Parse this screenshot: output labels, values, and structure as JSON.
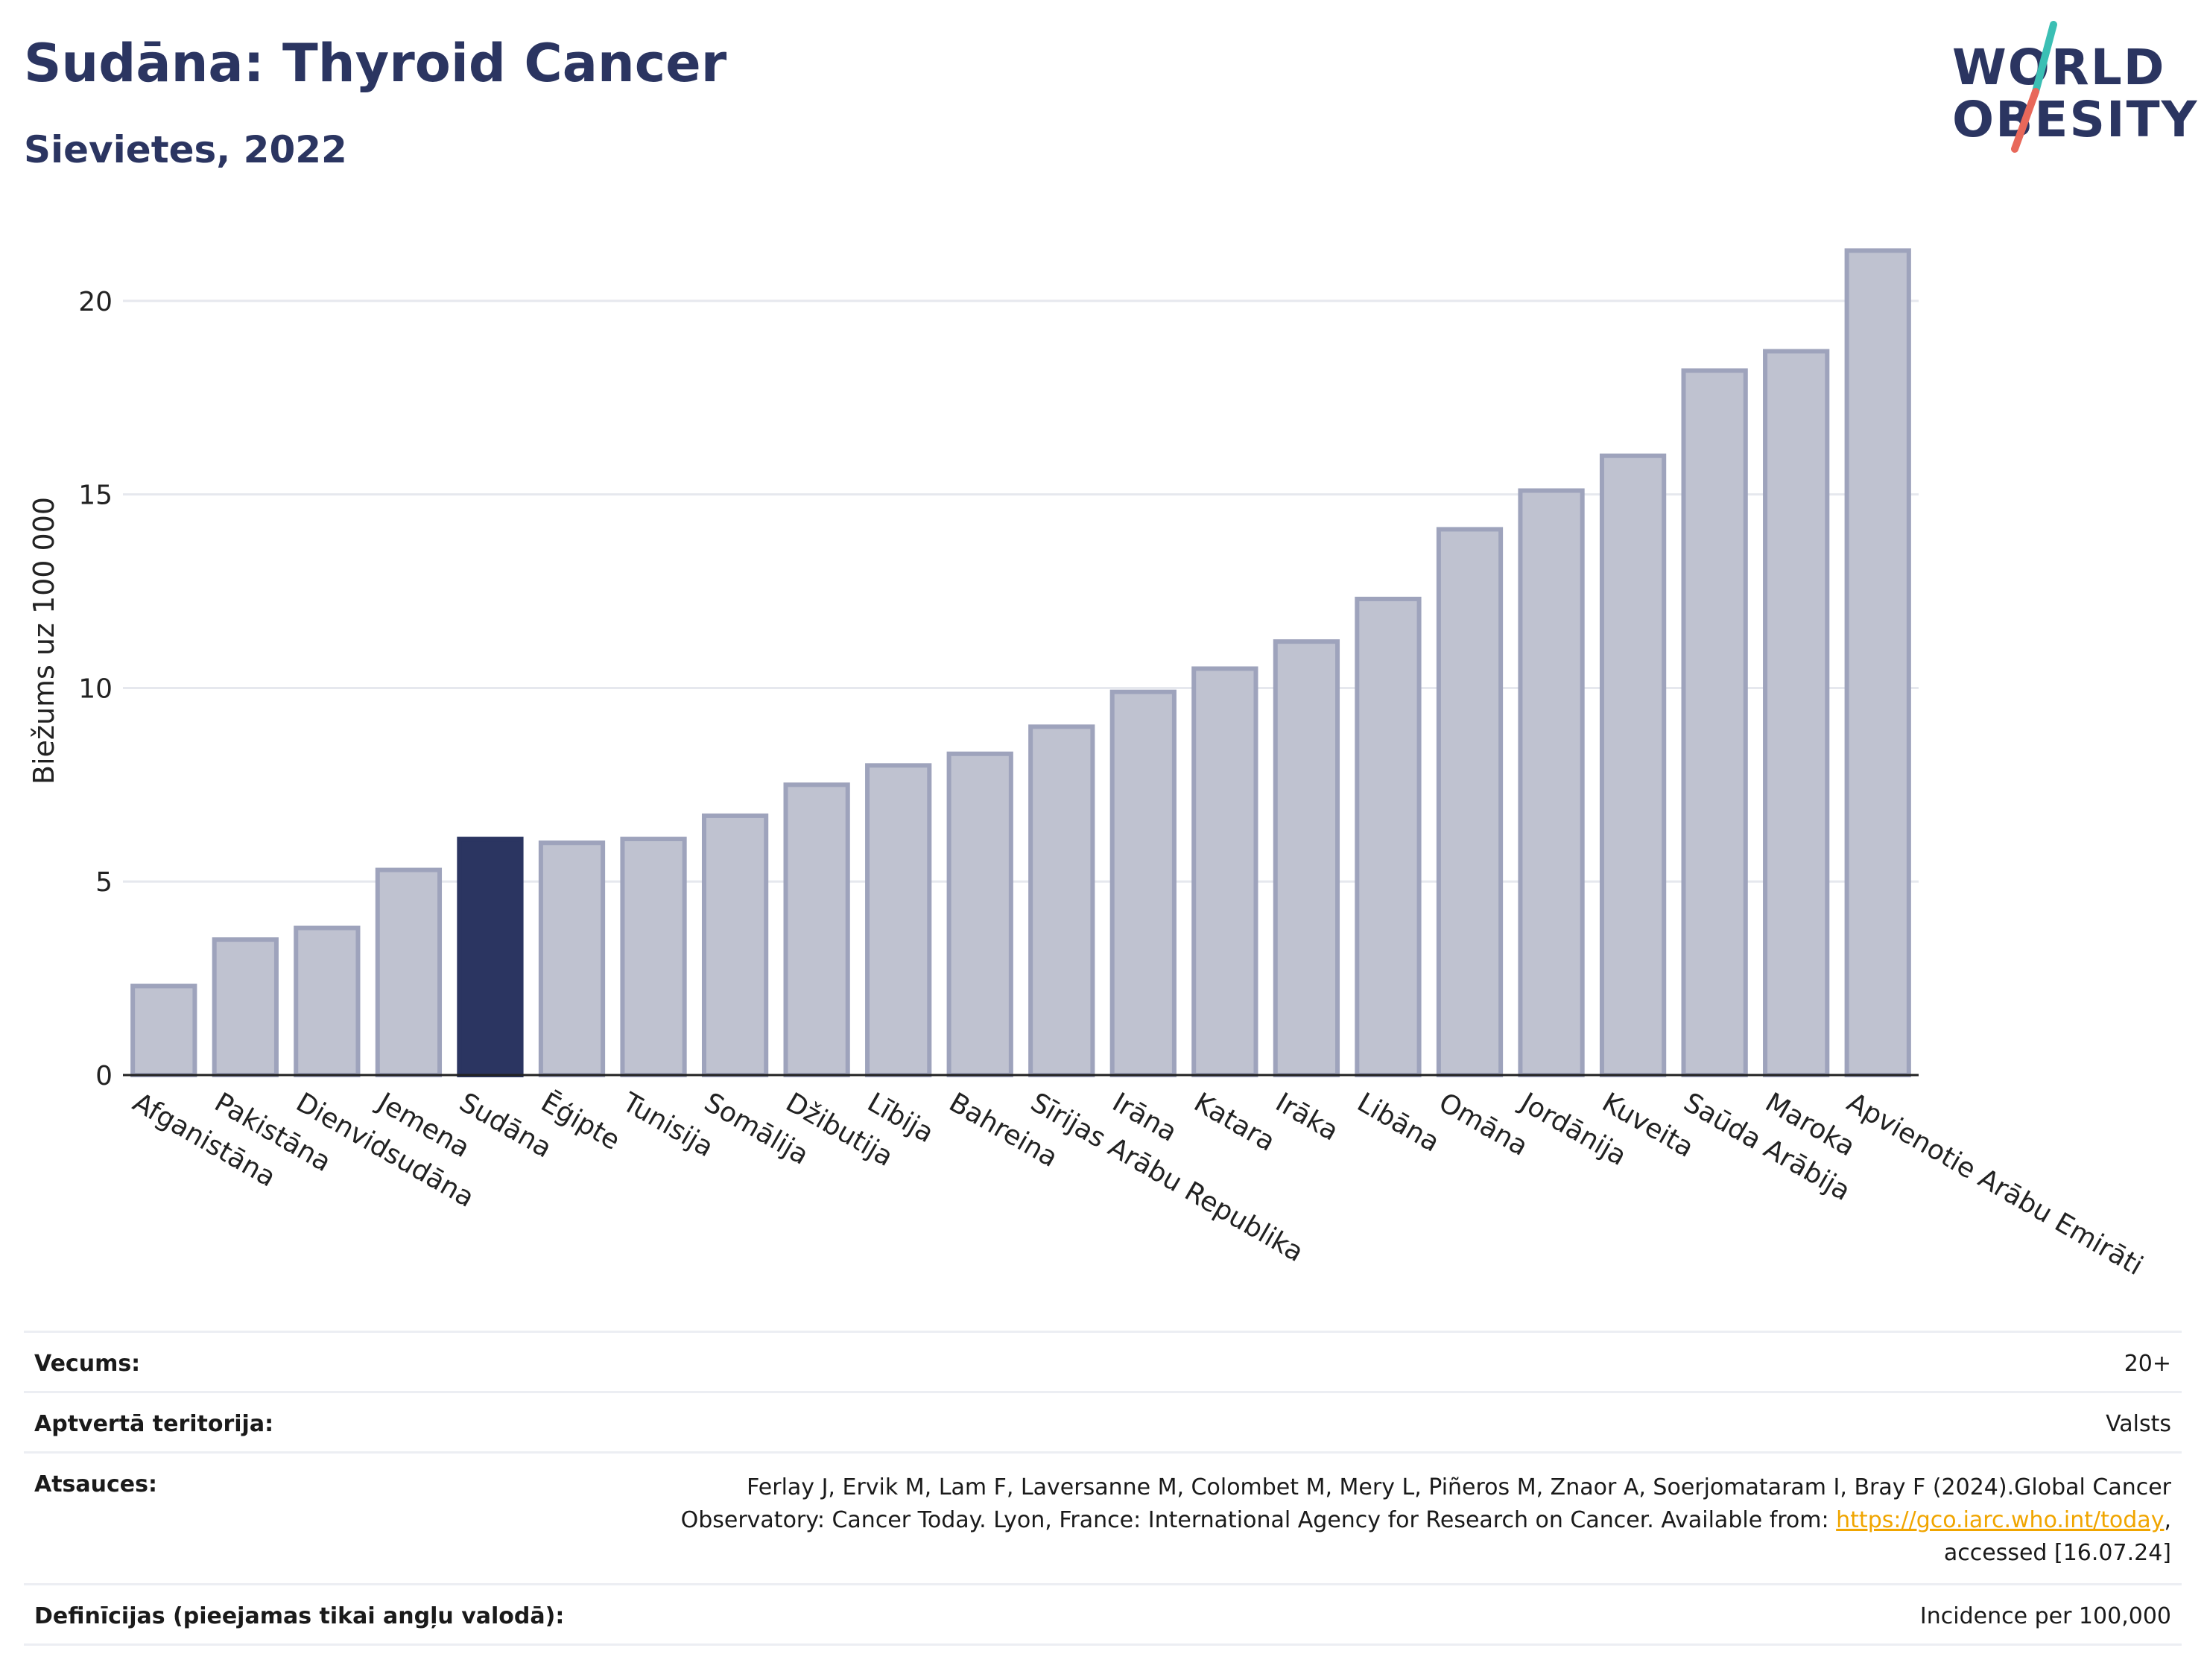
{
  "header": {
    "title": "Sudāna: Thyroid Cancer",
    "subtitle": "Sievietes, 2022"
  },
  "logo": {
    "line1": "WORLD",
    "line2": "OBESITY",
    "colors": {
      "text": "#2b3561",
      "slash_top": "#3bbfb4",
      "slash_bottom": "#e8685a"
    }
  },
  "chart_data": {
    "type": "bar",
    "ylabel": "Biežums uz 100 000",
    "ylim": [
      0,
      22
    ],
    "yticks": [
      0,
      5,
      10,
      15,
      20
    ],
    "grid": true,
    "highlight": "Sudāna",
    "colors": {
      "bar": "#bfc2d0",
      "bar_edge": "#9ea3bc",
      "highlight": "#2b3561",
      "grid": "#e6e8ee"
    },
    "categories": [
      "Afganistāna",
      "Pakistāna",
      "Dienvidsudāna",
      "Jemena",
      "Sudāna",
      "Ēģipte",
      "Tunisija",
      "Somālija",
      "Džibutija",
      "Lībija",
      "Bahreina",
      "Sīrijas Arābu Republika",
      "Irāna",
      "Katara",
      "Irāka",
      "Libāna",
      "Omāna",
      "Jordānija",
      "Kuveita",
      "Saūda Arābija",
      "Maroka",
      "Apvienotie Arābu Emirāti"
    ],
    "values": [
      2.3,
      3.5,
      3.8,
      5.3,
      6.1,
      6.0,
      6.1,
      6.7,
      7.5,
      8.0,
      8.3,
      9.0,
      9.9,
      10.5,
      11.2,
      12.3,
      14.1,
      15.1,
      16.0,
      18.2,
      18.7,
      21.3
    ]
  },
  "meta": {
    "rows": [
      {
        "label": "Vecums:",
        "value": "20+"
      },
      {
        "label": "Aptvertā teritorija:",
        "value": "Valsts"
      },
      {
        "label": "Atsauces:",
        "value_line1": "Ferlay J, Ervik M, Lam F, Laversanne M, Colombet M, Mery L, Piñeros M, Znaor A, Soerjomataram I, Bray F (2024).Global Cancer",
        "value_line2": "Observatory: Cancer Today. Lyon, France: International Agency for Research on Cancer. Available from: ",
        "link": "https://gco.iarc.who.int/today",
        "value_line2_end": ",",
        "value_line3": "accessed [16.07.24]"
      },
      {
        "label": "Definīcijas (pieejamas tikai angļu valodā):",
        "value": "Incidence per 100,000"
      }
    ]
  }
}
